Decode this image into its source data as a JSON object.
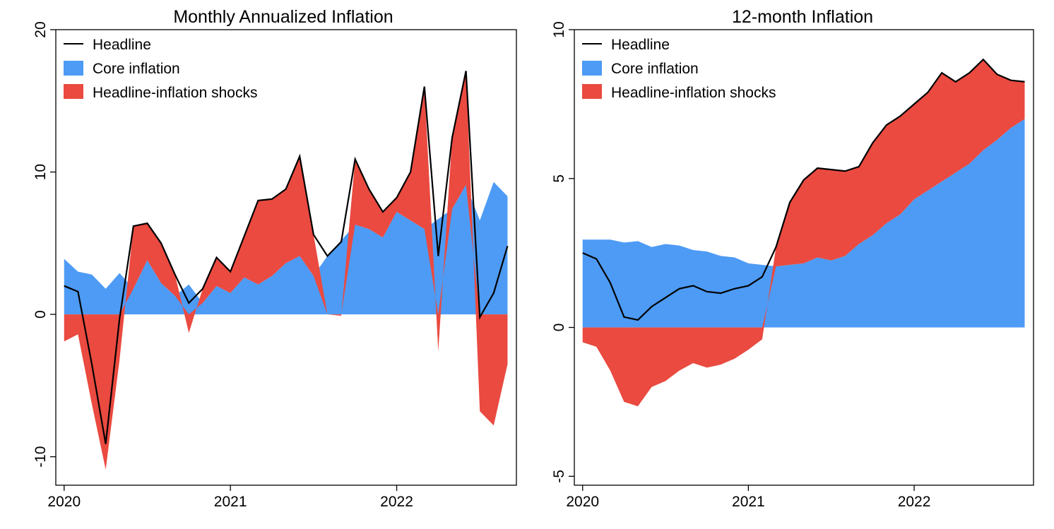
{
  "colors": {
    "core": "#4D9BF5",
    "shock": "#EA4A40",
    "headline": "#000000"
  },
  "chart_data": [
    {
      "type": "area",
      "title": "Monthly Annualized Inflation",
      "legend": [
        "Headline",
        "Core inflation",
        "Headline-inflation shocks"
      ],
      "x": [
        2020.0,
        2020.0833,
        2020.1667,
        2020.25,
        2020.3333,
        2020.4167,
        2020.5,
        2020.5833,
        2020.6667,
        2020.75,
        2020.8333,
        2020.9167,
        2021.0,
        2021.0833,
        2021.1667,
        2021.25,
        2021.3333,
        2021.4167,
        2021.5,
        2021.5833,
        2021.6667,
        2021.75,
        2021.8333,
        2021.9167,
        2022.0,
        2022.0833,
        2022.1667,
        2022.25,
        2022.3333,
        2022.4167,
        2022.5,
        2022.5833,
        2022.6667
      ],
      "series": [
        {
          "name": "Headline",
          "values": [
            2.0,
            1.6,
            -3.5,
            -9.1,
            -0.3,
            6.2,
            6.4,
            5.0,
            2.8,
            0.8,
            1.8,
            4.0,
            3.0,
            5.5,
            8.0,
            8.1,
            8.8,
            11.1,
            5.6,
            4.1,
            5.1,
            10.9,
            8.8,
            7.2,
            8.2,
            10.0,
            16.0,
            4.1,
            12.4,
            17.1,
            -0.2,
            1.5,
            4.8
          ]
        },
        {
          "name": "Core inflation",
          "values": [
            3.9,
            3.0,
            2.8,
            1.8,
            2.9,
            1.8,
            3.8,
            2.2,
            1.3,
            2.1,
            0.8,
            2.0,
            1.5,
            2.6,
            2.1,
            2.7,
            3.6,
            4.1,
            2.7,
            4.1,
            5.2,
            6.3,
            6.0,
            5.4,
            7.2,
            6.6,
            6.0,
            6.7,
            7.4,
            9.1,
            6.6,
            9.3,
            8.3
          ]
        },
        {
          "name": "Headline-inflation shocks",
          "values": [
            -1.9,
            -1.4,
            -6.3,
            -10.9,
            -3.2,
            4.4,
            2.6,
            2.8,
            1.5,
            -1.3,
            1.0,
            2.0,
            1.5,
            2.9,
            5.9,
            5.4,
            5.2,
            7.0,
            2.9,
            0.0,
            -0.1,
            4.6,
            2.8,
            1.8,
            1.0,
            3.4,
            10.0,
            -2.6,
            5.0,
            8.0,
            -6.8,
            -7.8,
            -3.5
          ]
        }
      ],
      "ylim": [
        -12,
        20
      ],
      "yticks": [
        -10,
        0,
        10,
        20
      ],
      "xlim": [
        2019.95,
        2022.72
      ],
      "xticks": [
        2020,
        2021,
        2022
      ],
      "xtick_labels": [
        "2020",
        "2021",
        "2022"
      ],
      "ytick_labels": [
        "-10",
        "0",
        "10",
        "20"
      ],
      "legend_position": "top-left"
    },
    {
      "type": "area",
      "title": "12-month Inflation",
      "legend": [
        "Headline",
        "Core inflation",
        "Headline-inflation shocks"
      ],
      "x": [
        2020.0,
        2020.0833,
        2020.1667,
        2020.25,
        2020.3333,
        2020.4167,
        2020.5,
        2020.5833,
        2020.6667,
        2020.75,
        2020.8333,
        2020.9167,
        2021.0,
        2021.0833,
        2021.1667,
        2021.25,
        2021.3333,
        2021.4167,
        2021.5,
        2021.5833,
        2021.6667,
        2021.75,
        2021.8333,
        2021.9167,
        2022.0,
        2022.0833,
        2022.1667,
        2022.25,
        2022.3333,
        2022.4167,
        2022.5,
        2022.5833,
        2022.6667
      ],
      "series": [
        {
          "name": "Headline",
          "values": [
            2.5,
            2.3,
            1.5,
            0.35,
            0.25,
            0.7,
            1.0,
            1.3,
            1.4,
            1.2,
            1.15,
            1.3,
            1.4,
            1.7,
            2.7,
            4.2,
            4.95,
            5.35,
            5.3,
            5.25,
            5.4,
            6.2,
            6.8,
            7.1,
            7.5,
            7.9,
            8.55,
            8.25,
            8.55,
            9.0,
            8.5,
            8.3,
            8.25
          ]
        },
        {
          "name": "Core inflation",
          "values": [
            2.95,
            2.95,
            2.95,
            2.85,
            2.9,
            2.7,
            2.8,
            2.75,
            2.6,
            2.55,
            2.4,
            2.35,
            2.15,
            2.1,
            2.05,
            2.1,
            2.15,
            2.35,
            2.25,
            2.4,
            2.8,
            3.1,
            3.5,
            3.8,
            4.3,
            4.6,
            4.9,
            5.2,
            5.5,
            5.95,
            6.3,
            6.7,
            7.0
          ]
        },
        {
          "name": "Headline-inflation shocks",
          "values": [
            -0.5,
            -0.65,
            -1.45,
            -2.5,
            -2.65,
            -2.0,
            -1.8,
            -1.45,
            -1.2,
            -1.35,
            -1.25,
            -1.05,
            -0.75,
            -0.4,
            0.65,
            2.1,
            2.8,
            3.0,
            3.05,
            2.85,
            2.6,
            3.1,
            3.3,
            3.3,
            3.2,
            3.3,
            3.65,
            3.05,
            3.05,
            3.05,
            2.2,
            1.6,
            1.25
          ]
        }
      ],
      "ylim": [
        -5.3,
        10.0
      ],
      "yticks": [
        -5,
        0,
        5,
        10
      ],
      "xlim": [
        2019.95,
        2022.72
      ],
      "xticks": [
        2020,
        2021,
        2022
      ],
      "xtick_labels": [
        "2020",
        "2021",
        "2022"
      ],
      "ytick_labels": [
        "-5",
        "0",
        "5",
        "10"
      ],
      "legend_position": "top-left"
    }
  ]
}
